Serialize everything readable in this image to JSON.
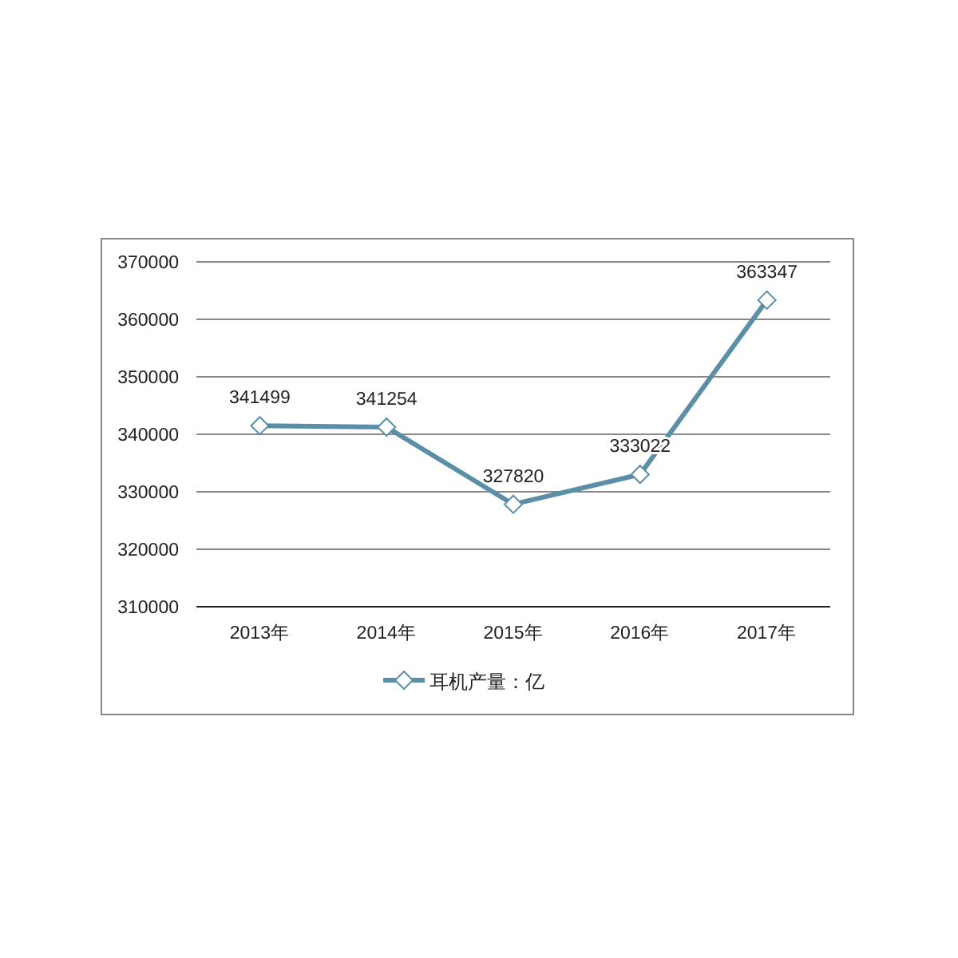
{
  "chart_data": {
    "type": "line",
    "categories": [
      "2013年",
      "2014年",
      "2015年",
      "2016年",
      "2017年"
    ],
    "series": [
      {
        "name": "耳机产量：亿",
        "color": "#5b8fa8",
        "values": [
          341499,
          341254,
          327820,
          333022,
          363347
        ]
      }
    ],
    "ylim": [
      310000,
      370000
    ],
    "yticks": [
      310000,
      320000,
      330000,
      340000,
      350000,
      360000,
      370000
    ],
    "grid": "y",
    "legend": "bottom",
    "marker": "diamond",
    "line_style": "solid",
    "data_labels": true
  }
}
